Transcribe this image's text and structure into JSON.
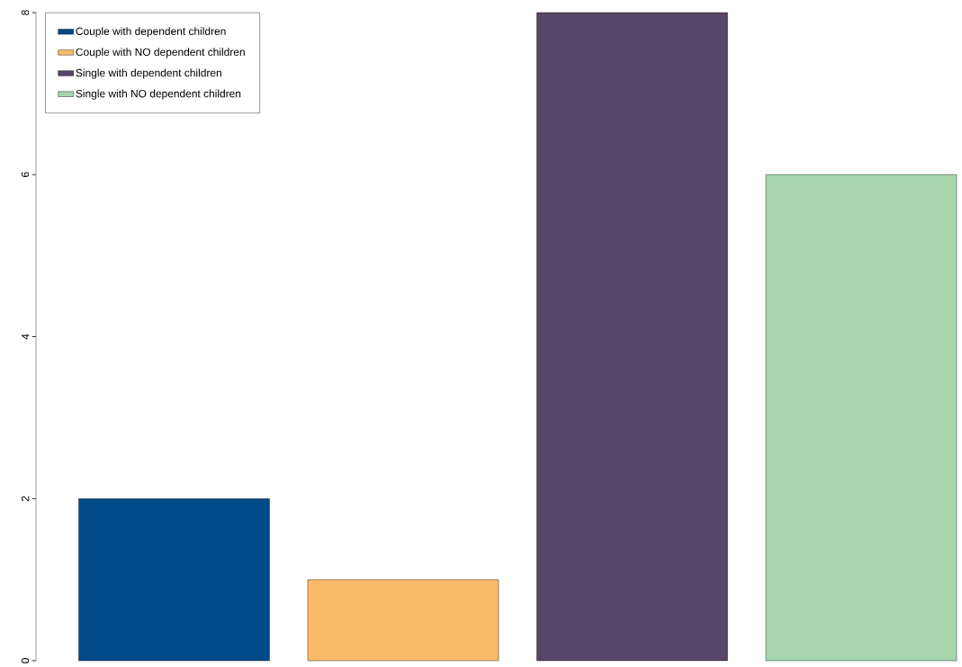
{
  "chart_data": {
    "type": "bar",
    "categories": [
      null
    ],
    "series": [
      {
        "name": "Couple with dependent children",
        "color": "#004a87",
        "values": [
          2
        ]
      },
      {
        "name": "Couple with NO dependent children",
        "color": "#fbbb6a",
        "values": [
          1
        ]
      },
      {
        "name": "Single with dependent children",
        "color": "#574669",
        "values": [
          8
        ]
      },
      {
        "name": "Single with NO dependent children",
        "color": "#a7d6ae",
        "values": [
          6
        ]
      }
    ],
    "ylim": [
      0,
      8
    ],
    "yticks": [
      0,
      2,
      4,
      6,
      8
    ],
    "legend": "top left",
    "grid": false,
    "tick_labels": "y"
  }
}
